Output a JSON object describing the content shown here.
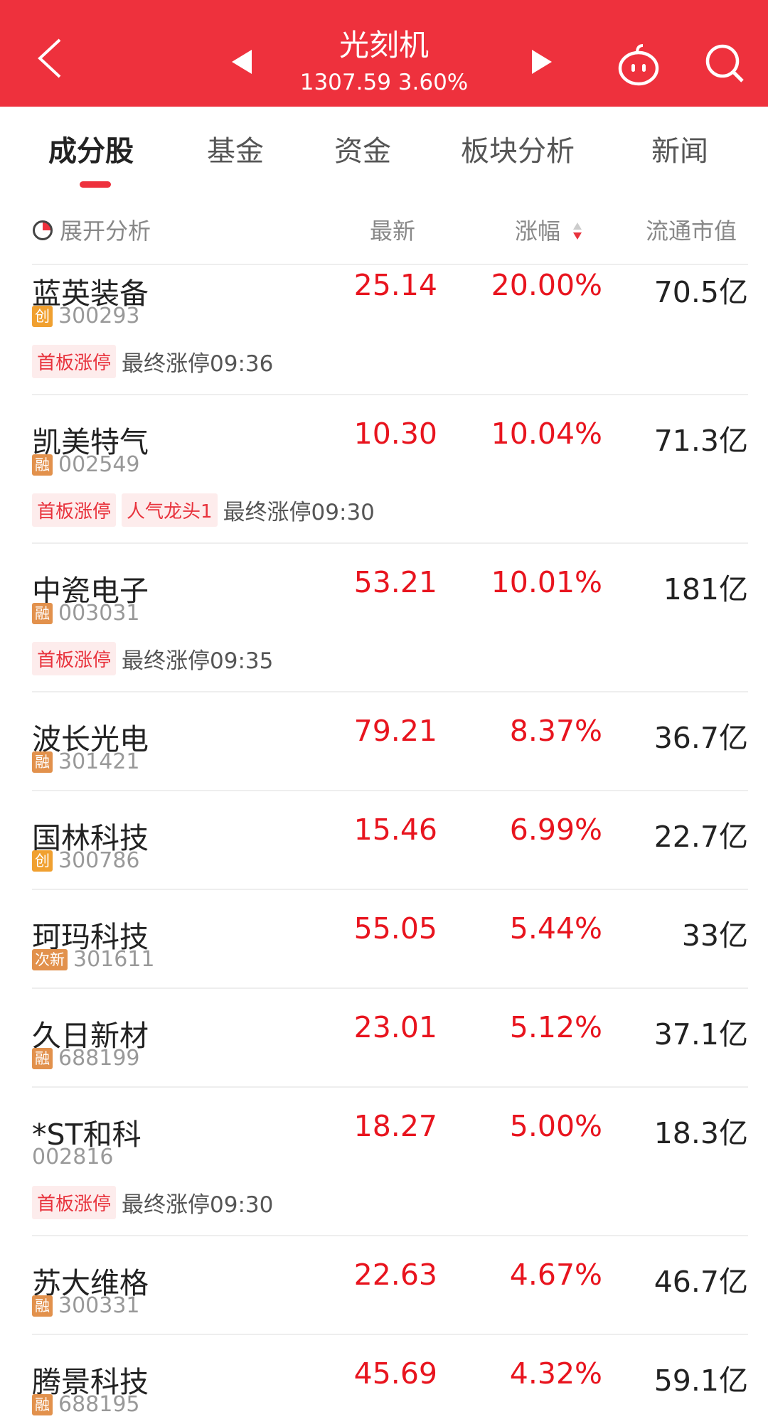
{
  "header": {
    "title": "光刻机",
    "index_value": "1307.59",
    "index_change": "3.60%",
    "color": "#EE313D"
  },
  "tabs": [
    {
      "label": "成分股",
      "active": true
    },
    {
      "label": "基金"
    },
    {
      "label": "资金"
    },
    {
      "label": "板块分析"
    },
    {
      "label": "新闻"
    }
  ],
  "columns": {
    "expand": "展开分析",
    "latest": "最新",
    "change": "涨幅",
    "market_cap": "流通市值",
    "sort": "descending"
  },
  "badge_colors": {
    "创": "#F0A030",
    "融": "#E2914C",
    "次新": "#E2914C"
  },
  "stocks": [
    {
      "name": "蓝英装备",
      "badge": "创",
      "code": "300293",
      "price": "25.14",
      "change": "20.00%",
      "cap": "70.5亿",
      "tags": [
        "首板涨停"
      ],
      "final": "最终涨停09:36"
    },
    {
      "name": "凯美特气",
      "badge": "融",
      "code": "002549",
      "price": "10.30",
      "change": "10.04%",
      "cap": "71.3亿",
      "tags": [
        "首板涨停",
        "人气龙头1"
      ],
      "final": "最终涨停09:30"
    },
    {
      "name": "中瓷电子",
      "badge": "融",
      "code": "003031",
      "price": "53.21",
      "change": "10.01%",
      "cap": "181亿",
      "tags": [
        "首板涨停"
      ],
      "final": "最终涨停09:35"
    },
    {
      "name": "波长光电",
      "badge": "融",
      "code": "301421",
      "price": "79.21",
      "change": "8.37%",
      "cap": "36.7亿"
    },
    {
      "name": "国林科技",
      "badge": "创",
      "code": "300786",
      "price": "15.46",
      "change": "6.99%",
      "cap": "22.7亿"
    },
    {
      "name": "珂玛科技",
      "badge": "次新",
      "code": "301611",
      "price": "55.05",
      "change": "5.44%",
      "cap": "33亿"
    },
    {
      "name": "久日新材",
      "badge": "融",
      "code": "688199",
      "price": "23.01",
      "change": "5.12%",
      "cap": "37.1亿"
    },
    {
      "name": "*ST和科",
      "badge": "",
      "code": "002816",
      "price": "18.27",
      "change": "5.00%",
      "cap": "18.3亿",
      "tags": [
        "首板涨停"
      ],
      "final": "最终涨停09:30"
    },
    {
      "name": "苏大维格",
      "badge": "融",
      "code": "300331",
      "price": "22.63",
      "change": "4.67%",
      "cap": "46.7亿"
    },
    {
      "name": "腾景科技",
      "badge": "融",
      "code": "688195",
      "price": "45.69",
      "change": "4.32%",
      "cap": "59.1亿"
    }
  ]
}
